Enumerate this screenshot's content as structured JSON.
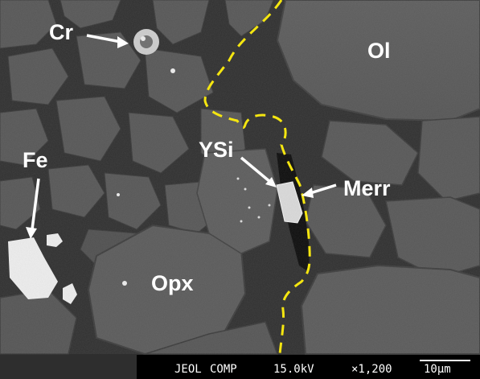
{
  "labels": {
    "cr": "Cr",
    "ol": "Ol",
    "fe": "Fe",
    "ysi": "YSi",
    "merr": "Merr",
    "opx": "Opx"
  },
  "info_bar": {
    "make": "JEOL",
    "mode": "COMP",
    "voltage": "15.0kV",
    "magnification": "×1,200",
    "scale": "10µm"
  },
  "colors": {
    "boundary": "#f5e610",
    "label_text": "#ffffff",
    "info_bar_bg": "#000000"
  }
}
